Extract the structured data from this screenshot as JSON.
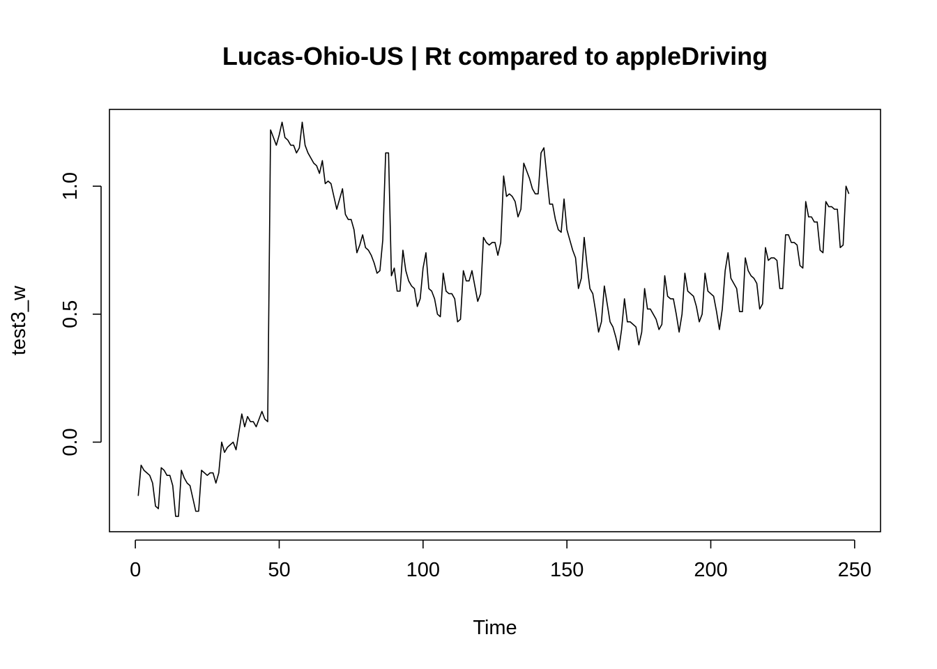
{
  "chart_data": {
    "type": "line",
    "title": "Lucas-Ohio-US | Rt compared to appleDriving",
    "xlabel": "Time",
    "ylabel": "test3_w",
    "xlim": [
      -9,
      259
    ],
    "ylim": [
      -0.35,
      1.3
    ],
    "xticks": [
      0,
      50,
      100,
      150,
      200,
      250
    ],
    "xtick_labels": [
      "0",
      "50",
      "100",
      "150",
      "200",
      "250"
    ],
    "yticks": [
      0.0,
      0.5,
      1.0
    ],
    "ytick_labels": [
      "0.0",
      "0.5",
      "1.0"
    ],
    "grid": false,
    "series": [
      {
        "x": [
          1,
          2,
          3,
          4,
          5,
          6,
          7,
          8,
          9,
          10,
          11,
          12,
          13,
          14,
          15,
          16,
          17,
          18,
          19,
          20,
          21,
          22,
          23,
          24,
          25,
          26,
          27,
          28,
          29,
          30,
          31,
          32,
          33,
          34,
          35,
          36,
          37,
          38,
          39,
          40,
          41,
          42,
          43,
          44,
          45,
          46,
          47,
          48,
          49,
          50,
          51,
          52,
          53,
          54,
          55,
          56,
          57,
          58,
          59,
          60,
          61,
          62,
          63,
          64,
          65,
          66,
          67,
          68,
          69,
          70,
          71,
          72,
          73,
          74,
          75,
          76,
          77,
          78,
          79,
          80,
          81,
          82,
          83,
          84,
          85,
          86,
          87,
          88,
          89,
          90,
          91,
          92,
          93,
          94,
          95,
          96,
          97,
          98,
          99,
          100,
          101,
          102,
          103,
          104,
          105,
          106,
          107,
          108,
          109,
          110,
          111,
          112,
          113,
          114,
          115,
          116,
          117,
          118,
          119,
          120,
          121,
          122,
          123,
          124,
          125,
          126,
          127,
          128,
          129,
          130,
          131,
          132,
          133,
          134,
          135,
          136,
          137,
          138,
          139,
          140,
          141,
          142,
          143,
          144,
          145,
          146,
          147,
          148,
          149,
          150,
          151,
          152,
          153,
          154,
          155,
          156,
          157,
          158,
          159,
          160,
          161,
          162,
          163,
          164,
          165,
          166,
          167,
          168,
          169,
          170,
          171,
          172,
          173,
          174,
          175,
          176,
          177,
          178,
          179,
          180,
          181,
          182,
          183,
          184,
          185,
          186,
          187,
          188,
          189,
          190,
          191,
          192,
          193,
          194,
          195,
          196,
          197,
          198,
          199,
          200,
          201,
          202,
          203,
          204,
          205,
          206,
          207,
          208,
          209,
          210,
          211,
          212,
          213,
          214,
          215,
          216,
          217,
          218,
          219,
          220,
          221,
          222,
          223,
          224,
          225,
          226,
          227,
          228,
          229,
          230,
          231,
          232,
          233,
          234,
          235,
          236,
          237,
          238,
          239,
          240,
          241,
          242,
          243,
          244,
          245,
          246,
          247,
          248
        ],
        "values": [
          -0.21,
          -0.09,
          -0.11,
          -0.12,
          -0.13,
          -0.16,
          -0.25,
          -0.26,
          -0.1,
          -0.11,
          -0.13,
          -0.13,
          -0.17,
          -0.29,
          -0.29,
          -0.11,
          -0.14,
          -0.16,
          -0.17,
          -0.22,
          -0.27,
          -0.27,
          -0.11,
          -0.12,
          -0.13,
          -0.12,
          -0.12,
          -0.16,
          -0.12,
          0.0,
          -0.04,
          -0.02,
          -0.01,
          0.0,
          -0.03,
          0.04,
          0.11,
          0.06,
          0.1,
          0.08,
          0.08,
          0.06,
          0.09,
          0.12,
          0.09,
          0.08,
          1.22,
          1.19,
          1.16,
          1.2,
          1.25,
          1.19,
          1.18,
          1.16,
          1.16,
          1.13,
          1.15,
          1.25,
          1.16,
          1.13,
          1.11,
          1.09,
          1.08,
          1.05,
          1.1,
          1.01,
          1.02,
          1.01,
          0.96,
          0.91,
          0.95,
          0.99,
          0.89,
          0.87,
          0.87,
          0.83,
          0.74,
          0.77,
          0.81,
          0.76,
          0.75,
          0.73,
          0.7,
          0.66,
          0.67,
          0.79,
          1.13,
          1.13,
          0.65,
          0.68,
          0.59,
          0.59,
          0.75,
          0.67,
          0.63,
          0.61,
          0.6,
          0.53,
          0.56,
          0.68,
          0.74,
          0.6,
          0.59,
          0.56,
          0.5,
          0.49,
          0.66,
          0.59,
          0.58,
          0.58,
          0.56,
          0.47,
          0.48,
          0.67,
          0.63,
          0.63,
          0.67,
          0.61,
          0.55,
          0.58,
          0.8,
          0.78,
          0.77,
          0.78,
          0.78,
          0.73,
          0.78,
          1.04,
          0.96,
          0.97,
          0.96,
          0.94,
          0.88,
          0.91,
          1.09,
          1.06,
          1.03,
          0.99,
          0.97,
          0.97,
          1.13,
          1.15,
          1.04,
          0.93,
          0.93,
          0.87,
          0.83,
          0.82,
          0.95,
          0.83,
          0.79,
          0.75,
          0.72,
          0.6,
          0.64,
          0.8,
          0.69,
          0.6,
          0.58,
          0.51,
          0.43,
          0.47,
          0.61,
          0.54,
          0.47,
          0.45,
          0.41,
          0.36,
          0.44,
          0.56,
          0.47,
          0.47,
          0.46,
          0.45,
          0.38,
          0.43,
          0.6,
          0.52,
          0.52,
          0.5,
          0.48,
          0.44,
          0.46,
          0.65,
          0.57,
          0.56,
          0.56,
          0.5,
          0.43,
          0.5,
          0.66,
          0.59,
          0.58,
          0.57,
          0.53,
          0.47,
          0.5,
          0.66,
          0.59,
          0.58,
          0.57,
          0.51,
          0.44,
          0.52,
          0.67,
          0.74,
          0.64,
          0.62,
          0.6,
          0.51,
          0.51,
          0.72,
          0.67,
          0.65,
          0.64,
          0.62,
          0.52,
          0.54,
          0.76,
          0.71,
          0.72,
          0.72,
          0.71,
          0.6,
          0.6,
          0.81,
          0.81,
          0.78,
          0.78,
          0.77,
          0.69,
          0.68,
          0.94,
          0.88,
          0.88,
          0.86,
          0.86,
          0.75,
          0.74,
          0.94,
          0.92,
          0.92,
          0.91,
          0.91,
          0.76,
          0.77,
          1.0,
          0.97
        ]
      }
    ]
  }
}
